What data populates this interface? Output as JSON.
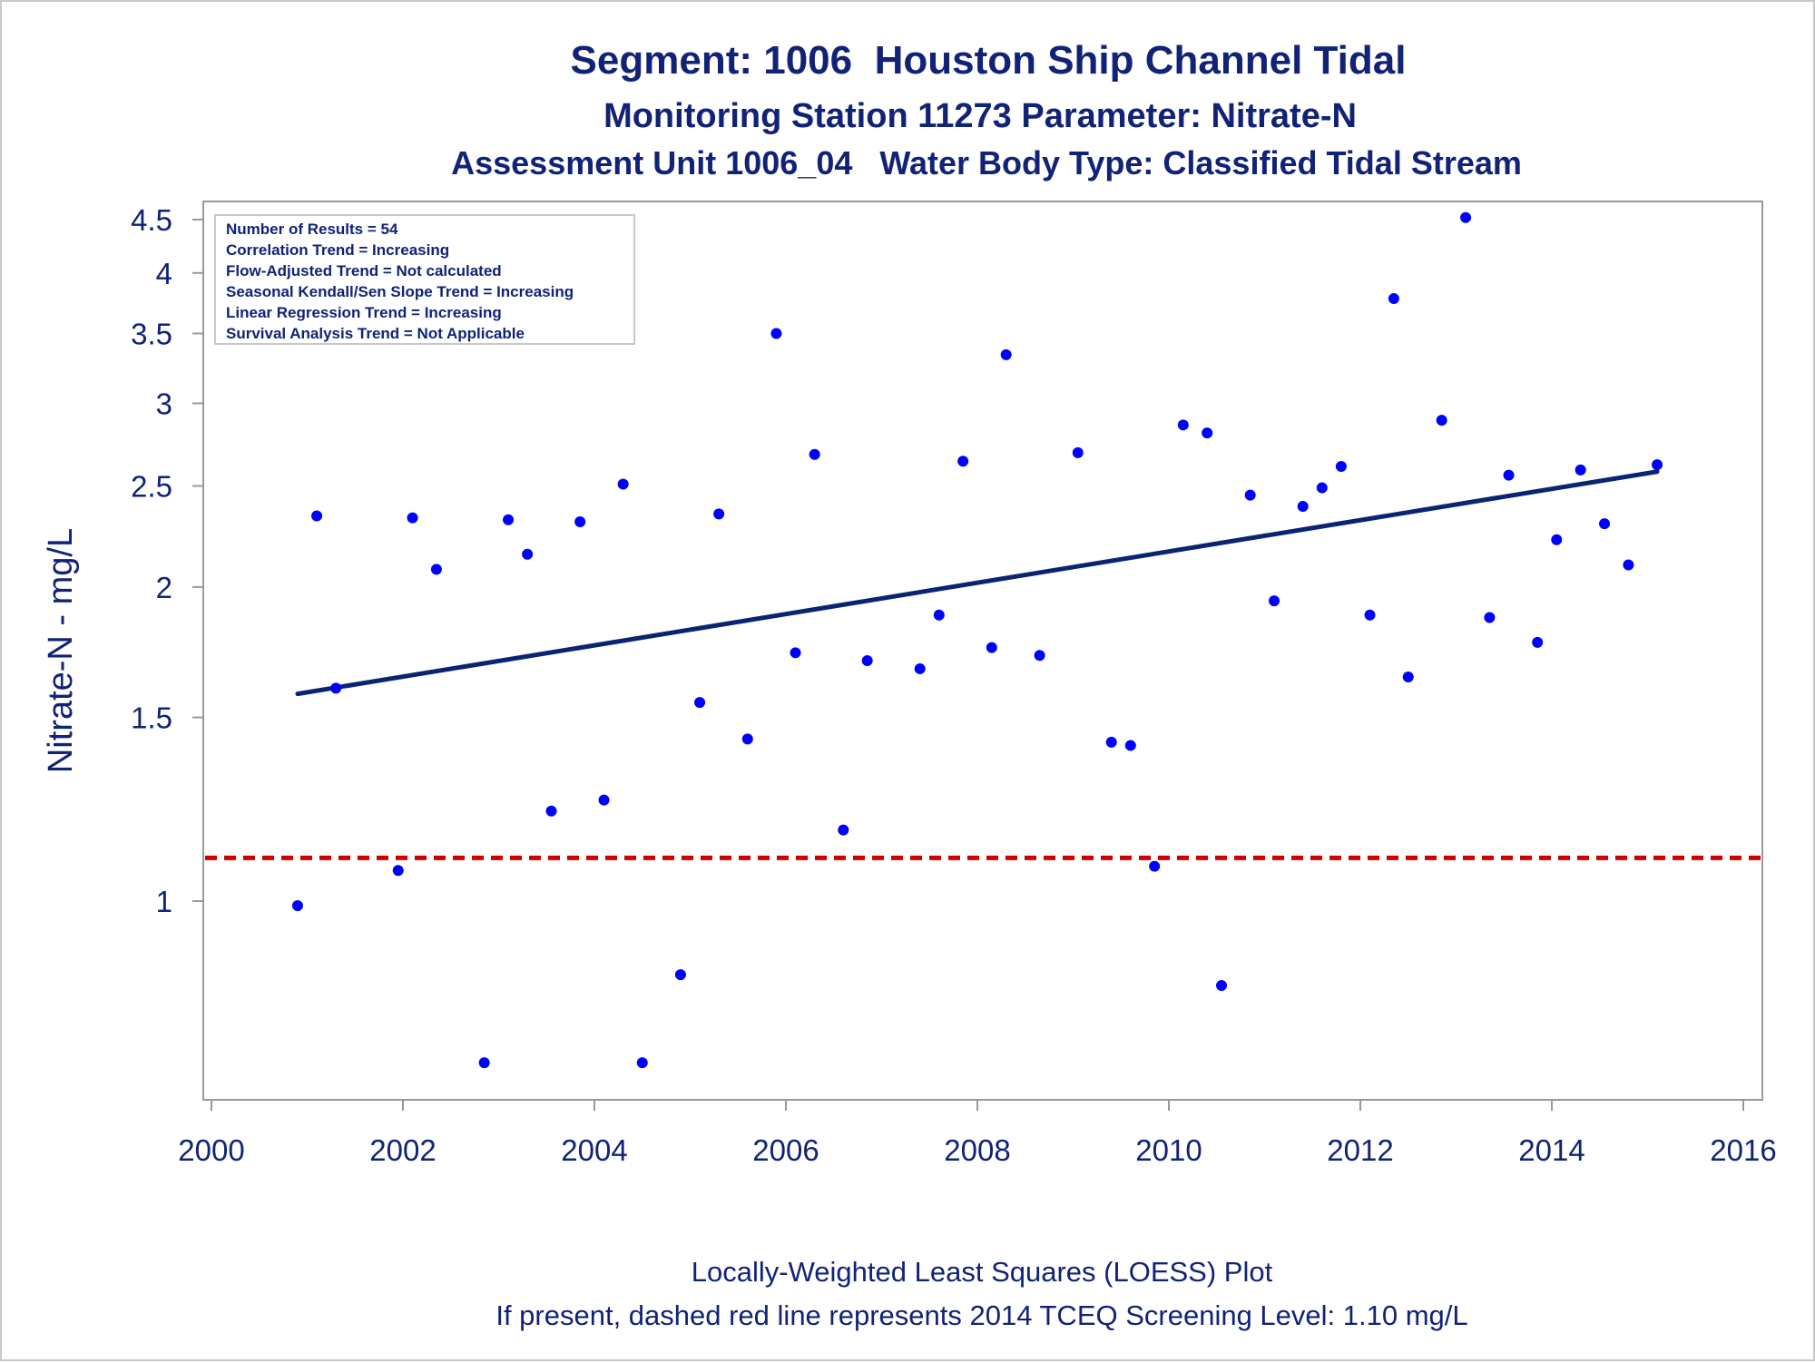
{
  "chart_data": {
    "type": "scatter",
    "title": "Segment: 1006  Houston Ship Channel Tidal",
    "subtitle": "Monitoring Station 11273 Parameter: Nitrate-N",
    "subtitle2": "Assessment Unit 1006_04   Water Body Type: Classified Tidal Stream",
    "xlabel": "",
    "ylabel": "Nitrate-N - mg/L",
    "y_scale": "log",
    "xlim": [
      1999.9,
      2016.2
    ],
    "ylim": [
      0.7,
      4.55
    ],
    "x_ticks": [
      2000,
      2002,
      2004,
      2006,
      2008,
      2010,
      2012,
      2014,
      2016
    ],
    "y_ticks": [
      1,
      1.5,
      2,
      2.5,
      3,
      3.5,
      4,
      4.5
    ],
    "y_tick_labels": [
      "1",
      "1.5",
      "2",
      "2.5",
      "3",
      "3.5",
      "4",
      "4.5"
    ],
    "grid": false,
    "legend_placement": "top-left",
    "legend_lines": [
      "Number of Results = 54",
      "Correlation Trend = Increasing",
      "Flow-Adjusted Trend = Not calculated",
      "Seasonal Kendall/Sen Slope Trend = Increasing",
      "Linear Regression Trend = Increasing",
      "Survival Analysis Trend = Not Applicable"
    ],
    "points": [
      {
        "x": 2000.9,
        "y": 0.99
      },
      {
        "x": 2001.1,
        "y": 2.34
      },
      {
        "x": 2001.3,
        "y": 1.6
      },
      {
        "x": 2001.95,
        "y": 1.07
      },
      {
        "x": 2002.1,
        "y": 2.33
      },
      {
        "x": 2002.35,
        "y": 2.08
      },
      {
        "x": 2002.85,
        "y": 0.7
      },
      {
        "x": 2003.1,
        "y": 2.32
      },
      {
        "x": 2003.3,
        "y": 2.15
      },
      {
        "x": 2003.55,
        "y": 1.22
      },
      {
        "x": 2003.85,
        "y": 2.31
      },
      {
        "x": 2004.1,
        "y": 1.25
      },
      {
        "x": 2004.3,
        "y": 2.51
      },
      {
        "x": 2004.5,
        "y": 0.7
      },
      {
        "x": 2004.9,
        "y": 0.85
      },
      {
        "x": 2005.1,
        "y": 1.55
      },
      {
        "x": 2005.3,
        "y": 2.35
      },
      {
        "x": 2005.6,
        "y": 1.43
      },
      {
        "x": 2005.9,
        "y": 3.5
      },
      {
        "x": 2006.1,
        "y": 1.73
      },
      {
        "x": 2006.3,
        "y": 2.68
      },
      {
        "x": 2006.6,
        "y": 1.17
      },
      {
        "x": 2006.85,
        "y": 1.7
      },
      {
        "x": 2007.4,
        "y": 1.67
      },
      {
        "x": 2007.6,
        "y": 1.88
      },
      {
        "x": 2007.85,
        "y": 2.64
      },
      {
        "x": 2008.15,
        "y": 1.75
      },
      {
        "x": 2008.3,
        "y": 3.34
      },
      {
        "x": 2008.65,
        "y": 1.72
      },
      {
        "x": 2009.05,
        "y": 2.69
      },
      {
        "x": 2009.4,
        "y": 1.42
      },
      {
        "x": 2009.6,
        "y": 1.41
      },
      {
        "x": 2009.85,
        "y": 1.08
      },
      {
        "x": 2010.15,
        "y": 2.86
      },
      {
        "x": 2010.4,
        "y": 2.81
      },
      {
        "x": 2010.55,
        "y": 0.83
      },
      {
        "x": 2010.85,
        "y": 2.45
      },
      {
        "x": 2011.1,
        "y": 1.94
      },
      {
        "x": 2011.4,
        "y": 2.39
      },
      {
        "x": 2011.6,
        "y": 2.49
      },
      {
        "x": 2011.8,
        "y": 2.61
      },
      {
        "x": 2012.1,
        "y": 1.88
      },
      {
        "x": 2012.35,
        "y": 3.78
      },
      {
        "x": 2012.5,
        "y": 1.64
      },
      {
        "x": 2012.85,
        "y": 2.89
      },
      {
        "x": 2013.1,
        "y": 4.52
      },
      {
        "x": 2013.35,
        "y": 1.87
      },
      {
        "x": 2013.55,
        "y": 2.56
      },
      {
        "x": 2013.85,
        "y": 1.77
      },
      {
        "x": 2014.05,
        "y": 2.22
      },
      {
        "x": 2014.3,
        "y": 2.59
      },
      {
        "x": 2014.55,
        "y": 2.3
      },
      {
        "x": 2014.8,
        "y": 2.1
      },
      {
        "x": 2015.1,
        "y": 2.62
      }
    ],
    "trend_line": {
      "x": [
        2000.9,
        2015.1
      ],
      "y": [
        1.58,
        2.58
      ],
      "color": "#0a2472"
    },
    "screening_level": {
      "y": 1.1,
      "color": "#cc0000"
    },
    "point_color": "#0000ff",
    "footnotes": [
      "Locally-Weighted Least Squares (LOESS) Plot",
      "If present, dashed red line represents 2014 TCEQ Screening Level: 1.10 mg/L"
    ]
  }
}
